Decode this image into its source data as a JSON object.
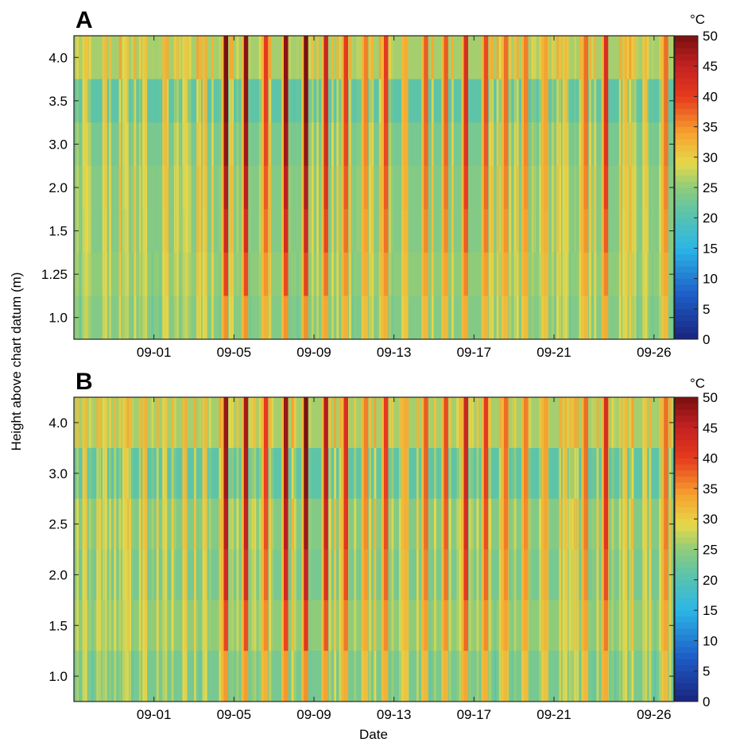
{
  "figure": {
    "ylabel": "Height above chart datum (m)",
    "xlabel": "Date"
  },
  "chart_data": [
    {
      "panel": "A",
      "type": "heatmap",
      "title": "",
      "xlabel": "",
      "ylabel": "Height above chart datum (m)",
      "x_start_date": "08-28",
      "x_end_date": "09-27",
      "xticks": [
        "09-01",
        "09-05",
        "09-09",
        "09-13",
        "09-17",
        "09-21",
        "09-26"
      ],
      "rows": [
        "4.0",
        "3.5",
        "3.0",
        "2.0",
        "1.5",
        "1.25",
        "1.0"
      ],
      "row_base_temp": [
        26,
        21,
        23,
        24,
        24,
        25,
        24
      ],
      "hot_days": [
        {
          "date": "09-04",
          "peak": 50
        },
        {
          "date": "09-05",
          "peak": 49
        },
        {
          "date": "09-06",
          "peak": 40
        },
        {
          "date": "09-07",
          "peak": 49
        },
        {
          "date": "09-08",
          "peak": 50
        },
        {
          "date": "09-09",
          "peak": 44
        },
        {
          "date": "09-10",
          "peak": 40
        },
        {
          "date": "09-11",
          "peak": 36
        },
        {
          "date": "09-12",
          "peak": 40
        },
        {
          "date": "09-13",
          "peak": 33
        },
        {
          "date": "09-14",
          "peak": 38
        },
        {
          "date": "09-15",
          "peak": 38
        },
        {
          "date": "09-16",
          "peak": 42
        },
        {
          "date": "09-17",
          "peak": 39
        },
        {
          "date": "09-18",
          "peak": 37
        },
        {
          "date": "09-19",
          "peak": 36
        },
        {
          "date": "09-20",
          "peak": 34
        },
        {
          "date": "09-22",
          "peak": 37
        },
        {
          "date": "09-23",
          "peak": 42
        },
        {
          "date": "09-26",
          "peak": 37
        }
      ],
      "colorbar": {
        "unit": "°C",
        "min": 0,
        "max": 50,
        "ticks": [
          "0",
          "5",
          "10",
          "15",
          "20",
          "25",
          "30",
          "35",
          "40",
          "45",
          "50"
        ]
      }
    },
    {
      "panel": "B",
      "type": "heatmap",
      "title": "",
      "xlabel": "Date",
      "ylabel": "Height above chart datum (m)",
      "x_start_date": "08-28",
      "x_end_date": "09-27",
      "xticks": [
        "09-01",
        "09-05",
        "09-09",
        "09-13",
        "09-17",
        "09-21",
        "09-26"
      ],
      "rows": [
        "4.0",
        "3.0",
        "2.5",
        "2.0",
        "1.5",
        "1.0"
      ],
      "row_base_temp": [
        26,
        21,
        24,
        23,
        25,
        23
      ],
      "hot_days": [
        {
          "date": "09-04",
          "peak": 48
        },
        {
          "date": "09-05",
          "peak": 47
        },
        {
          "date": "09-06",
          "peak": 40
        },
        {
          "date": "09-07",
          "peak": 48
        },
        {
          "date": "09-08",
          "peak": 50
        },
        {
          "date": "09-09",
          "peak": 46
        },
        {
          "date": "09-10",
          "peak": 42
        },
        {
          "date": "09-11",
          "peak": 36
        },
        {
          "date": "09-12",
          "peak": 40
        },
        {
          "date": "09-13",
          "peak": 33
        },
        {
          "date": "09-14",
          "peak": 38
        },
        {
          "date": "09-15",
          "peak": 39
        },
        {
          "date": "09-16",
          "peak": 44
        },
        {
          "date": "09-17",
          "peak": 40
        },
        {
          "date": "09-18",
          "peak": 37
        },
        {
          "date": "09-19",
          "peak": 36
        },
        {
          "date": "09-20",
          "peak": 34
        },
        {
          "date": "09-22",
          "peak": 37
        },
        {
          "date": "09-23",
          "peak": 42
        },
        {
          "date": "09-26",
          "peak": 37
        }
      ],
      "colorbar": {
        "unit": "°C",
        "min": 0,
        "max": 50,
        "ticks": [
          "0",
          "5",
          "10",
          "15",
          "20",
          "25",
          "30",
          "35",
          "40",
          "45",
          "50"
        ]
      }
    }
  ]
}
